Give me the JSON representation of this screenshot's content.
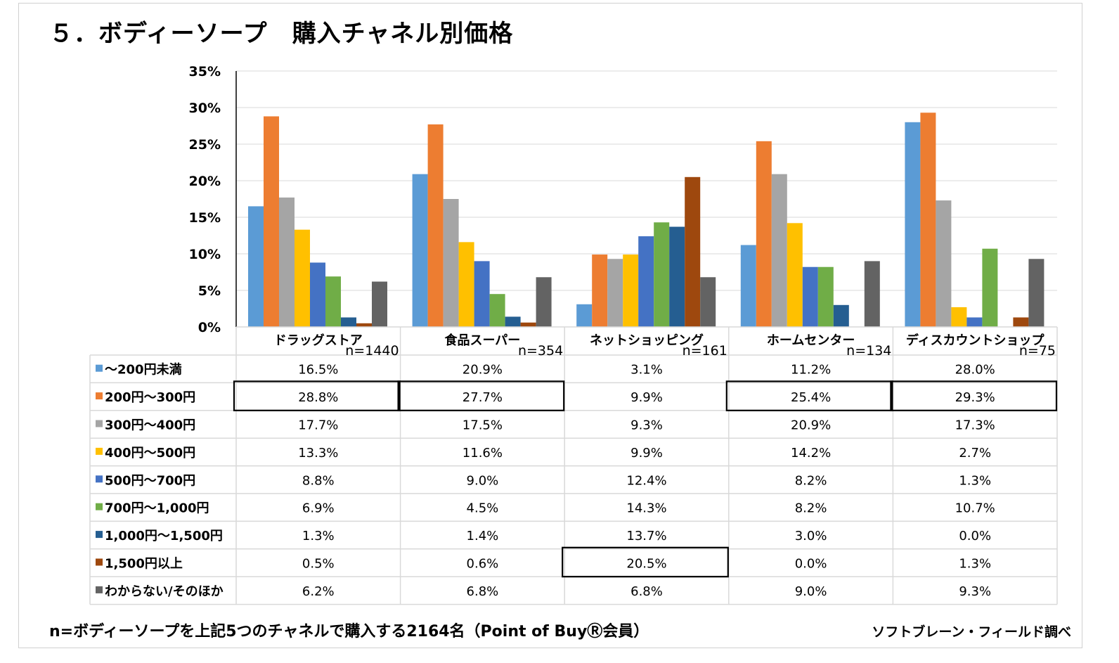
{
  "title": "５．ボディーソープ　購入チャネル別価格",
  "footnote": "n=ボディーソープを上記5つのチャネルで購入する2164名（Point of BuyⓇ会員）",
  "credit": "ソフトブレーン・フィールド調べ",
  "chart_data": {
    "type": "bar",
    "title": "５．ボディーソープ　購入チャネル別価格",
    "xlabel": "",
    "ylabel": "",
    "ylim": [
      0,
      35
    ],
    "yticks": [
      "0%",
      "5%",
      "10%",
      "15%",
      "20%",
      "25%",
      "30%",
      "35%"
    ],
    "grid": true,
    "legend": "table-left",
    "categories": [
      "ドラッグストア",
      "食品スーパー",
      "ネットショッピング",
      "ホームセンター",
      "ディスカウントショップ"
    ],
    "n_labels": [
      "n=1440",
      "n=354",
      "n=161",
      "n=134",
      "n=75"
    ],
    "series": [
      {
        "name": "～200円未満",
        "color": "#5b9bd5",
        "values": [
          16.5,
          20.9,
          3.1,
          11.2,
          28.0
        ],
        "labels": [
          "16.5%",
          "20.9%",
          "3.1%",
          "11.2%",
          "28.0%"
        ]
      },
      {
        "name": "200円～300円",
        "color": "#ed7d31",
        "values": [
          28.8,
          27.7,
          9.9,
          25.4,
          29.3
        ],
        "labels": [
          "28.8%",
          "27.7%",
          "9.9%",
          "25.4%",
          "29.3%"
        ]
      },
      {
        "name": "300円～400円",
        "color": "#a5a5a5",
        "values": [
          17.7,
          17.5,
          9.3,
          20.9,
          17.3
        ],
        "labels": [
          "17.7%",
          "17.5%",
          "9.3%",
          "20.9%",
          "17.3%"
        ]
      },
      {
        "name": "400円～500円",
        "color": "#ffc000",
        "values": [
          13.3,
          11.6,
          9.9,
          14.2,
          2.7
        ],
        "labels": [
          "13.3%",
          "11.6%",
          "9.9%",
          "14.2%",
          "2.7%"
        ]
      },
      {
        "name": "500円～700円",
        "color": "#4472c4",
        "values": [
          8.8,
          9.0,
          12.4,
          8.2,
          1.3
        ],
        "labels": [
          "8.8%",
          "9.0%",
          "12.4%",
          "8.2%",
          "1.3%"
        ]
      },
      {
        "name": "700円～1,000円",
        "color": "#70ad47",
        "values": [
          6.9,
          4.5,
          14.3,
          8.2,
          10.7
        ],
        "labels": [
          "6.9%",
          "4.5%",
          "14.3%",
          "8.2%",
          "10.7%"
        ]
      },
      {
        "name": "1,000円～1,500円",
        "color": "#255e91",
        "values": [
          1.3,
          1.4,
          13.7,
          3.0,
          0.0
        ],
        "labels": [
          "1.3%",
          "1.4%",
          "13.7%",
          "3.0%",
          "0.0%"
        ]
      },
      {
        "name": "1,500円以上",
        "color": "#9e480e",
        "values": [
          0.5,
          0.6,
          20.5,
          0.0,
          1.3
        ],
        "labels": [
          "0.5%",
          "0.6%",
          "20.5%",
          "0.0%",
          "1.3%"
        ]
      },
      {
        "name": "わからない/そのほか",
        "color": "#636363",
        "values": [
          6.2,
          6.8,
          6.8,
          9.0,
          9.3
        ],
        "labels": [
          "6.2%",
          "6.8%",
          "6.8%",
          "9.0%",
          "9.3%"
        ]
      }
    ],
    "highlighted_cells": [
      [
        1,
        0
      ],
      [
        1,
        1
      ],
      [
        7,
        2
      ],
      [
        1,
        3
      ],
      [
        1,
        4
      ]
    ]
  }
}
